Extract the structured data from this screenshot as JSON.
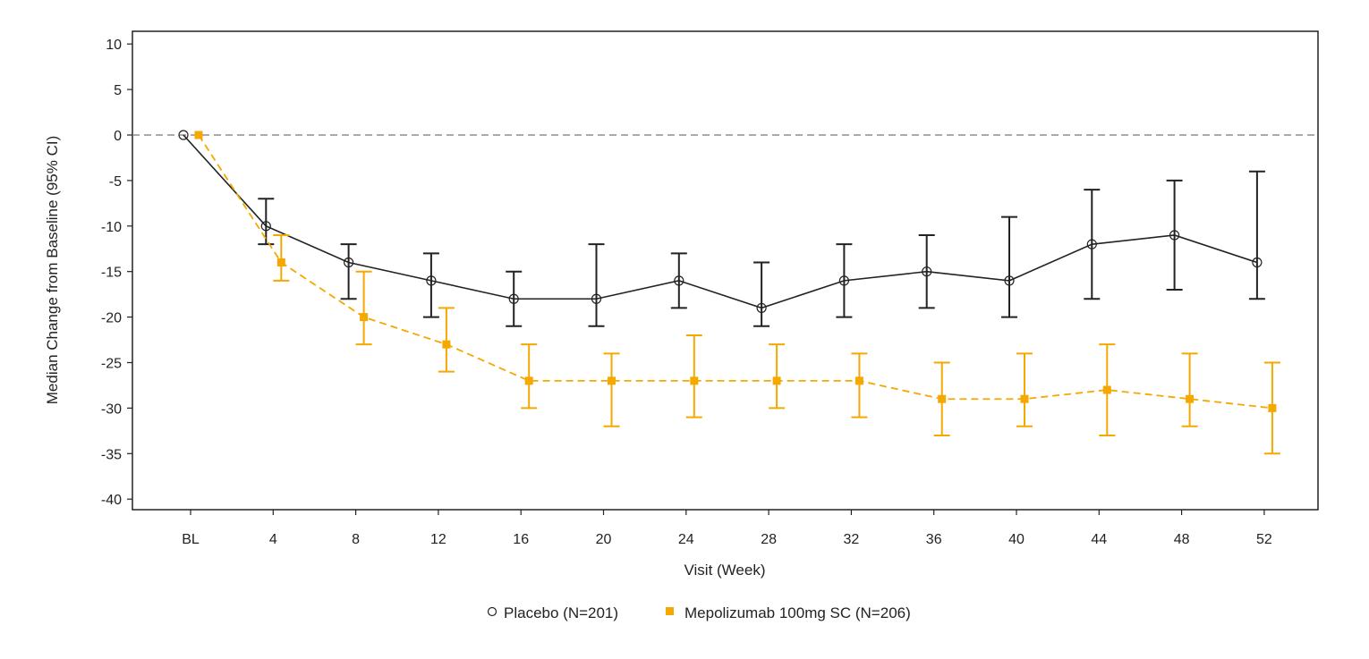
{
  "chart_data": {
    "type": "line",
    "xlabel": "Visit (Week)",
    "ylabel": "Median Change from Baseline (95% CI)",
    "categories": [
      "BL",
      "4",
      "8",
      "12",
      "16",
      "20",
      "24",
      "28",
      "32",
      "36",
      "40",
      "44",
      "48",
      "52"
    ],
    "ylim": [
      -42,
      11
    ],
    "yticks": [
      10,
      5,
      0,
      -5,
      -10,
      -15,
      -20,
      -25,
      -30,
      -35,
      -40
    ],
    "reference_line": 0,
    "grid": false,
    "legend_position": "bottom",
    "series": [
      {
        "name": "Placebo (N=201)",
        "color": "#222222",
        "marker": "open-circle",
        "line": "solid",
        "values": [
          0,
          -10,
          -14,
          -16,
          -18,
          -18,
          -16,
          -19,
          -16,
          -15,
          -16,
          -12,
          -11,
          -14
        ],
        "ci_low": [
          null,
          -12,
          -18,
          -20,
          -21,
          -21,
          -19,
          -21,
          -20,
          -19,
          -20,
          -18,
          -17,
          -18
        ],
        "ci_high": [
          null,
          -7,
          -12,
          -13,
          -15,
          -12,
          -13,
          -14,
          -12,
          -11,
          -9,
          -6,
          -5,
          -4
        ]
      },
      {
        "name": "Mepolizumab 100mg SC (N=206)",
        "color": "#F5A800",
        "marker": "filled-square",
        "line": "dashed",
        "values": [
          0,
          -14,
          -20,
          -23,
          -27,
          -27,
          -27,
          -27,
          -27,
          -29,
          -29,
          -28,
          -29,
          -30
        ],
        "ci_low": [
          null,
          -16,
          -23,
          -26,
          -30,
          -32,
          -31,
          -30,
          -31,
          -33,
          -32,
          -33,
          -32,
          -35
        ],
        "ci_high": [
          null,
          -11,
          -15,
          -19,
          -23,
          -24,
          -22,
          -23,
          -24,
          -25,
          -24,
          -23,
          -24,
          -25
        ]
      }
    ]
  }
}
